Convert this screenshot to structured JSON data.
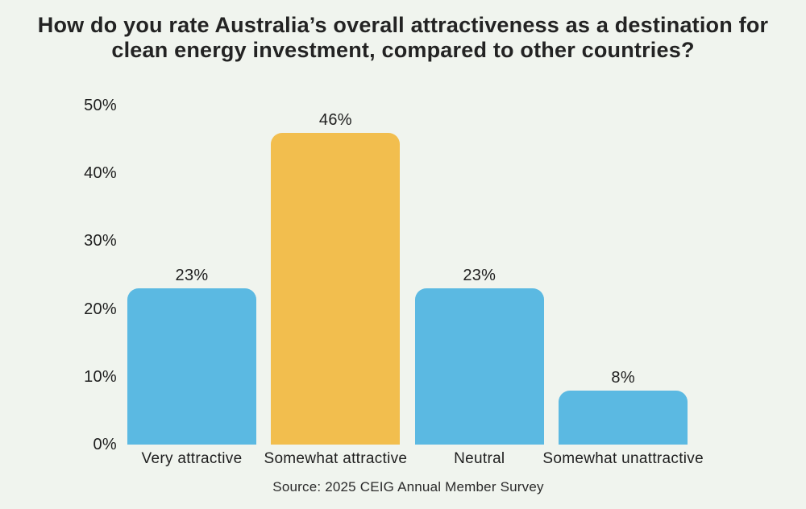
{
  "title_lines": [
    "How do you rate Australia’s overall attractiveness as a destination for",
    "clean energy investment, compared to other countries?"
  ],
  "source": "Source: 2025 CEIG Annual Member Survey",
  "colors": {
    "background": "#F0F4EE",
    "bar_default": "#5BB9E2",
    "bar_highlight": "#F2BE4E",
    "text": "#1E1E1E",
    "title_text": "#232323"
  },
  "chart_data": {
    "type": "bar",
    "title": "How do you rate Australia’s overall attractiveness as a destination for clean energy investment, compared to other countries?",
    "categories": [
      "Very attractive",
      "Somewhat attractive",
      "Neutral",
      "Somewhat unattractive"
    ],
    "values": [
      23,
      46,
      23,
      8
    ],
    "value_labels": [
      "23%",
      "46%",
      "23%",
      "8%"
    ],
    "bar_colors": [
      "#5BB9E2",
      "#F2BE4E",
      "#5BB9E2",
      "#5BB9E2"
    ],
    "highlight_category": "Somewhat attractive",
    "xlabel": "",
    "ylabel": "",
    "ylim": [
      0,
      50
    ],
    "yticks": [
      0,
      10,
      20,
      30,
      40,
      50
    ],
    "ytick_labels": [
      "0%",
      "10%",
      "20%",
      "30%",
      "40%",
      "50%"
    ],
    "grid": false,
    "legend": "none",
    "axis_lines": false,
    "source": "Source: 2025 CEIG Annual Member Survey"
  }
}
